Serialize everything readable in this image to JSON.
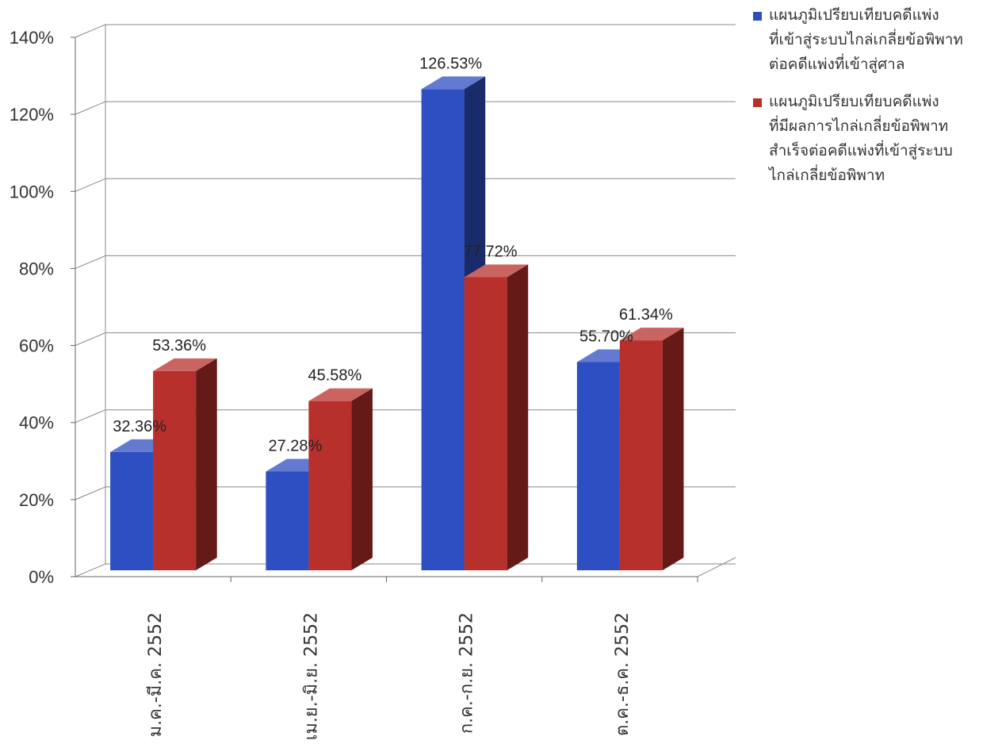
{
  "chart_data": {
    "type": "bar",
    "title": "",
    "xlabel": "",
    "ylabel": "",
    "categories": [
      "ม.ค.-มี.ค. 2552",
      "เม.ย.-มิ.ย. 2552",
      "ก.ค.-ก.ย. 2552",
      "ต.ค.-ธ.ค. 2552"
    ],
    "series": [
      {
        "name": "แผนภูมิเปรียบเทียบคดีแพ่งที่เข้าสู่ระบบไกล่เกลี่ยข้อพิพาทต่อคดีแพ่งที่เข้าสู่ศาล",
        "name_lines": [
          "แผนภูมิเปรียบเทียบคดีแพ่ง",
          "ที่เข้าสู่ระบบไกล่เกลี่ยข้อพิพาท",
          "ต่อคดีแพ่งที่เข้าสู่ศาล"
        ],
        "values": [
          32.36,
          27.28,
          126.53,
          55.7
        ],
        "labels": [
          "32.36%",
          "27.28%",
          "126.53%",
          "55.70%"
        ],
        "color": "#2d4fc2"
      },
      {
        "name": "แผนภูมิเปรียบเทียบคดีแพ่งที่มีผลการไกล่เกลี่ยข้อพิพาทสำเร็จต่อคดีแพ่งที่เข้าสู่ระบบไกล่เกลี่ยข้อพิพาท",
        "name_lines": [
          "แผนภูมิเปรียบเทียบคดีแพ่ง",
          "ที่มีผลการไกล่เกลี่ยข้อพิพาท",
          "สำเร็จต่อคดีแพ่งที่เข้าสู่ระบบ",
          "ไกล่เกลี่ยข้อพิพาท"
        ],
        "values": [
          53.36,
          45.58,
          77.72,
          61.34
        ],
        "labels": [
          "53.36%",
          "45.58%",
          "77.72%",
          "61.34%"
        ],
        "color": "#b8302c"
      }
    ],
    "ylim": [
      0,
      140
    ],
    "yticks": [
      0,
      20,
      40,
      60,
      80,
      100,
      120,
      140
    ],
    "ytick_labels": [
      "0%",
      "20%",
      "40%",
      "60%",
      "80%",
      "100%",
      "120%",
      "140%"
    ],
    "grid": true,
    "legend_position": "right",
    "style": "3d-column"
  }
}
